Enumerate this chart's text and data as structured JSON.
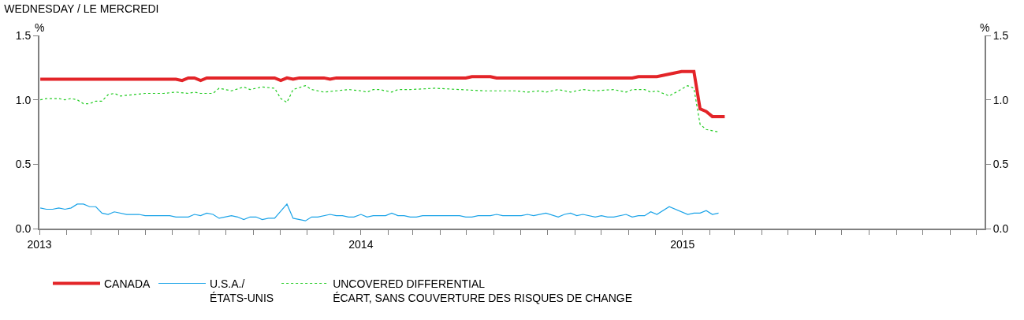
{
  "chart_data": {
    "type": "line",
    "title": "WEDNESDAY / LE MERCREDI",
    "ylabel": "%",
    "y2label": "%",
    "xlim": [
      "2013-01-01",
      "2015-12-10"
    ],
    "xticks": [
      {
        "value": "2013-01-01",
        "label": "2013"
      },
      {
        "value": "2013-02-01",
        "label": null
      },
      {
        "value": "2013-03-01",
        "label": null
      },
      {
        "value": "2013-04-01",
        "label": null
      },
      {
        "value": "2013-05-01",
        "label": null
      },
      {
        "value": "2013-06-01",
        "label": null
      },
      {
        "value": "2013-07-01",
        "label": null
      },
      {
        "value": "2013-08-01",
        "label": null
      },
      {
        "value": "2013-09-01",
        "label": null
      },
      {
        "value": "2013-10-01",
        "label": null
      },
      {
        "value": "2013-11-01",
        "label": null
      },
      {
        "value": "2013-12-01",
        "label": null
      },
      {
        "value": "2014-01-01",
        "label": "2014"
      },
      {
        "value": "2014-02-01",
        "label": null
      },
      {
        "value": "2014-03-01",
        "label": null
      },
      {
        "value": "2014-04-01",
        "label": null
      },
      {
        "value": "2014-05-01",
        "label": null
      },
      {
        "value": "2014-06-01",
        "label": null
      },
      {
        "value": "2014-07-01",
        "label": null
      },
      {
        "value": "2014-08-01",
        "label": null
      },
      {
        "value": "2014-09-01",
        "label": null
      },
      {
        "value": "2014-10-01",
        "label": null
      },
      {
        "value": "2014-11-01",
        "label": null
      },
      {
        "value": "2014-12-01",
        "label": null
      },
      {
        "value": "2015-01-01",
        "label": "2015"
      },
      {
        "value": "2015-02-01",
        "label": null
      },
      {
        "value": "2015-03-01",
        "label": null
      },
      {
        "value": "2015-04-01",
        "label": null
      },
      {
        "value": "2015-05-01",
        "label": null
      },
      {
        "value": "2015-06-01",
        "label": null
      },
      {
        "value": "2015-07-01",
        "label": null
      },
      {
        "value": "2015-08-01",
        "label": null
      },
      {
        "value": "2015-09-01",
        "label": null
      },
      {
        "value": "2015-10-01",
        "label": null
      },
      {
        "value": "2015-11-01",
        "label": null
      },
      {
        "value": "2015-12-01",
        "label": null
      }
    ],
    "ylim": [
      0,
      1.5
    ],
    "yticks": [
      {
        "value": 0,
        "label": "0.0"
      },
      {
        "value": 0.5,
        "label": "0.5"
      },
      {
        "value": 1,
        "label": "1.0"
      },
      {
        "value": 1.5,
        "label": "1.5"
      }
    ],
    "y2lim": [
      0,
      1.5
    ],
    "y2ticks": [
      {
        "value": 0,
        "label": "0.0"
      },
      {
        "value": 0.5,
        "label": "0.5"
      },
      {
        "value": 1,
        "label": "1.0"
      },
      {
        "value": 1.5,
        "label": "1.5"
      }
    ],
    "legend": "bottom",
    "marker": "none",
    "series": [
      {
        "name": "CANADA",
        "color": "#e32428",
        "line_style": "solid",
        "x": [
          "2013-01-02",
          "2013-06-05",
          "2013-06-12",
          "2013-06-19",
          "2013-06-26",
          "2013-07-03",
          "2013-07-10",
          "2013-09-25",
          "2013-10-02",
          "2013-10-09",
          "2013-10-16",
          "2013-10-23",
          "2013-11-20",
          "2013-11-27",
          "2013-12-04",
          "2014-04-30",
          "2014-05-07",
          "2014-05-28",
          "2014-06-04",
          "2014-11-05",
          "2014-11-12",
          "2014-12-03",
          "2014-12-17",
          "2014-12-31",
          "2015-01-14",
          "2015-01-21",
          "2015-01-28",
          "2015-02-04",
          "2015-02-18"
        ],
        "values": [
          1.16,
          1.16,
          1.15,
          1.17,
          1.17,
          1.15,
          1.17,
          1.17,
          1.15,
          1.17,
          1.16,
          1.17,
          1.17,
          1.16,
          1.17,
          1.17,
          1.18,
          1.18,
          1.17,
          1.17,
          1.18,
          1.18,
          1.2,
          1.22,
          1.22,
          0.93,
          0.91,
          0.87,
          0.87
        ]
      },
      {
        "name": "U.S.A./\nÉTATS-UNIS",
        "color": "#1aa3e8",
        "line_style": "solid",
        "x": [
          "2013-01-02",
          "2013-01-09",
          "2013-01-16",
          "2013-01-23",
          "2013-01-30",
          "2013-02-06",
          "2013-02-13",
          "2013-02-20",
          "2013-02-27",
          "2013-03-06",
          "2013-03-13",
          "2013-03-20",
          "2013-03-27",
          "2013-04-10",
          "2013-04-24",
          "2013-05-01",
          "2013-05-29",
          "2013-06-05",
          "2013-06-19",
          "2013-06-26",
          "2013-07-03",
          "2013-07-10",
          "2013-07-17",
          "2013-07-24",
          "2013-08-07",
          "2013-08-14",
          "2013-08-21",
          "2013-08-28",
          "2013-09-04",
          "2013-09-11",
          "2013-09-18",
          "2013-09-25",
          "2013-10-09",
          "2013-10-16",
          "2013-10-30",
          "2013-11-06",
          "2013-11-13",
          "2013-11-27",
          "2013-12-04",
          "2013-12-11",
          "2013-12-18",
          "2013-12-24",
          "2014-01-01",
          "2014-01-08",
          "2014-01-15",
          "2014-01-29",
          "2014-02-05",
          "2014-02-12",
          "2014-02-19",
          "2014-02-26",
          "2014-03-05",
          "2014-03-12",
          "2014-04-23",
          "2014-04-30",
          "2014-05-07",
          "2014-05-14",
          "2014-05-28",
          "2014-06-04",
          "2014-06-11",
          "2014-07-02",
          "2014-07-09",
          "2014-07-16",
          "2014-07-30",
          "2014-08-13",
          "2014-08-20",
          "2014-08-27",
          "2014-09-03",
          "2014-09-10",
          "2014-09-24",
          "2014-10-01",
          "2014-10-08",
          "2014-10-15",
          "2014-10-29",
          "2014-11-05",
          "2014-11-12",
          "2014-11-19",
          "2014-11-26",
          "2014-12-03",
          "2014-12-17",
          "2015-01-07",
          "2015-01-14",
          "2015-01-21",
          "2015-01-28",
          "2015-02-04",
          "2015-02-11"
        ],
        "values": [
          0.16,
          0.15,
          0.15,
          0.16,
          0.15,
          0.16,
          0.19,
          0.19,
          0.17,
          0.17,
          0.12,
          0.11,
          0.13,
          0.11,
          0.11,
          0.1,
          0.1,
          0.09,
          0.09,
          0.11,
          0.1,
          0.12,
          0.11,
          0.08,
          0.1,
          0.09,
          0.07,
          0.09,
          0.09,
          0.07,
          0.08,
          0.08,
          0.19,
          0.08,
          0.06,
          0.09,
          0.09,
          0.11,
          0.1,
          0.1,
          0.09,
          0.09,
          0.11,
          0.09,
          0.1,
          0.1,
          0.12,
          0.1,
          0.1,
          0.09,
          0.09,
          0.1,
          0.1,
          0.09,
          0.09,
          0.1,
          0.1,
          0.11,
          0.1,
          0.1,
          0.11,
          0.1,
          0.12,
          0.09,
          0.11,
          0.12,
          0.1,
          0.11,
          0.09,
          0.1,
          0.09,
          0.09,
          0.11,
          0.09,
          0.1,
          0.1,
          0.13,
          0.11,
          0.17,
          0.11,
          0.12,
          0.12,
          0.14,
          0.11,
          0.12
        ]
      },
      {
        "name": "UNCOVERED DIFFERENTIAL\nÉCART, SANS COUVERTURE DES RISQUES DE CHANGE",
        "color": "#22cc22",
        "line_style": "dotted",
        "x": [
          "2013-01-02",
          "2013-01-09",
          "2013-01-23",
          "2013-01-30",
          "2013-02-06",
          "2013-02-13",
          "2013-02-20",
          "2013-02-27",
          "2013-03-06",
          "2013-03-13",
          "2013-03-20",
          "2013-03-27",
          "2013-04-03",
          "2013-04-17",
          "2013-05-01",
          "2013-05-22",
          "2013-06-05",
          "2013-06-19",
          "2013-06-26",
          "2013-07-03",
          "2013-07-17",
          "2013-07-24",
          "2013-08-07",
          "2013-08-21",
          "2013-08-28",
          "2013-09-11",
          "2013-09-25",
          "2013-10-02",
          "2013-10-09",
          "2013-10-16",
          "2013-10-30",
          "2013-11-06",
          "2013-11-20",
          "2013-12-04",
          "2013-12-18",
          "2014-01-01",
          "2014-01-08",
          "2014-01-15",
          "2014-01-22",
          "2014-02-05",
          "2014-02-12",
          "2014-02-26",
          "2014-03-26",
          "2014-04-23",
          "2014-05-21",
          "2014-06-25",
          "2014-07-09",
          "2014-07-23",
          "2014-07-30",
          "2014-08-13",
          "2014-08-27",
          "2014-09-10",
          "2014-09-24",
          "2014-10-15",
          "2014-10-29",
          "2014-11-05",
          "2014-11-19",
          "2014-11-26",
          "2014-12-03",
          "2014-12-17",
          "2015-01-07",
          "2015-01-14",
          "2015-01-21",
          "2015-01-28",
          "2015-02-04",
          "2015-02-11"
        ],
        "values": [
          1.0,
          1.01,
          1.01,
          1.0,
          1.01,
          1.0,
          0.97,
          0.97,
          0.99,
          0.99,
          1.04,
          1.05,
          1.03,
          1.04,
          1.05,
          1.05,
          1.06,
          1.05,
          1.06,
          1.05,
          1.05,
          1.09,
          1.07,
          1.1,
          1.08,
          1.1,
          1.09,
          1.01,
          0.98,
          1.08,
          1.11,
          1.08,
          1.06,
          1.07,
          1.08,
          1.07,
          1.06,
          1.08,
          1.08,
          1.06,
          1.08,
          1.08,
          1.09,
          1.08,
          1.07,
          1.07,
          1.06,
          1.07,
          1.06,
          1.08,
          1.06,
          1.08,
          1.07,
          1.08,
          1.06,
          1.08,
          1.08,
          1.06,
          1.07,
          1.03,
          1.11,
          1.09,
          0.81,
          0.77,
          0.76,
          0.75
        ]
      }
    ]
  }
}
